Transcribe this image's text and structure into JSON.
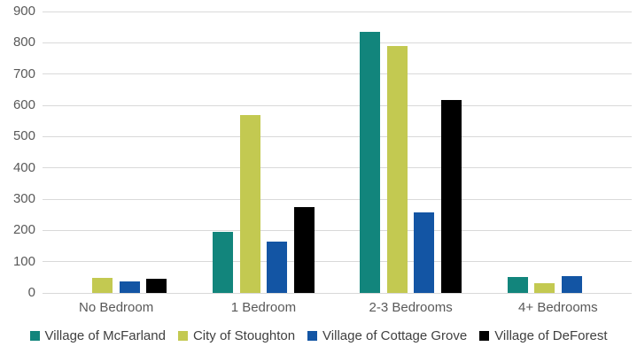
{
  "chart_data": {
    "type": "bar",
    "title": "",
    "categories": [
      "No Bedroom",
      "1 Bedroom",
      "2-3 Bedrooms",
      "4+ Bedrooms"
    ],
    "series": [
      {
        "name": "Village of McFarland",
        "color": "#12857c",
        "values": [
          0,
          195,
          835,
          50
        ]
      },
      {
        "name": "City of Stoughton",
        "color": "#c3c951",
        "values": [
          48,
          568,
          791,
          31
        ]
      },
      {
        "name": "Village of Cottage Grove",
        "color": "#1355a4",
        "values": [
          37,
          165,
          257,
          55
        ]
      },
      {
        "name": "Village of DeForest",
        "color": "#000000",
        "values": [
          46,
          274,
          618,
          0
        ]
      }
    ],
    "ylim": [
      0,
      900
    ],
    "ytick_step": 100,
    "yticks": [
      0,
      100,
      200,
      300,
      400,
      500,
      600,
      700,
      800,
      900
    ],
    "xlabel": "",
    "ylabel": "",
    "grid": true,
    "legend_position": "bottom"
  },
  "colors": {
    "background": "#ffffff",
    "gridline": "#d9d9d9",
    "axis_text": "#595959",
    "legend_text": "#3f3f3f"
  }
}
